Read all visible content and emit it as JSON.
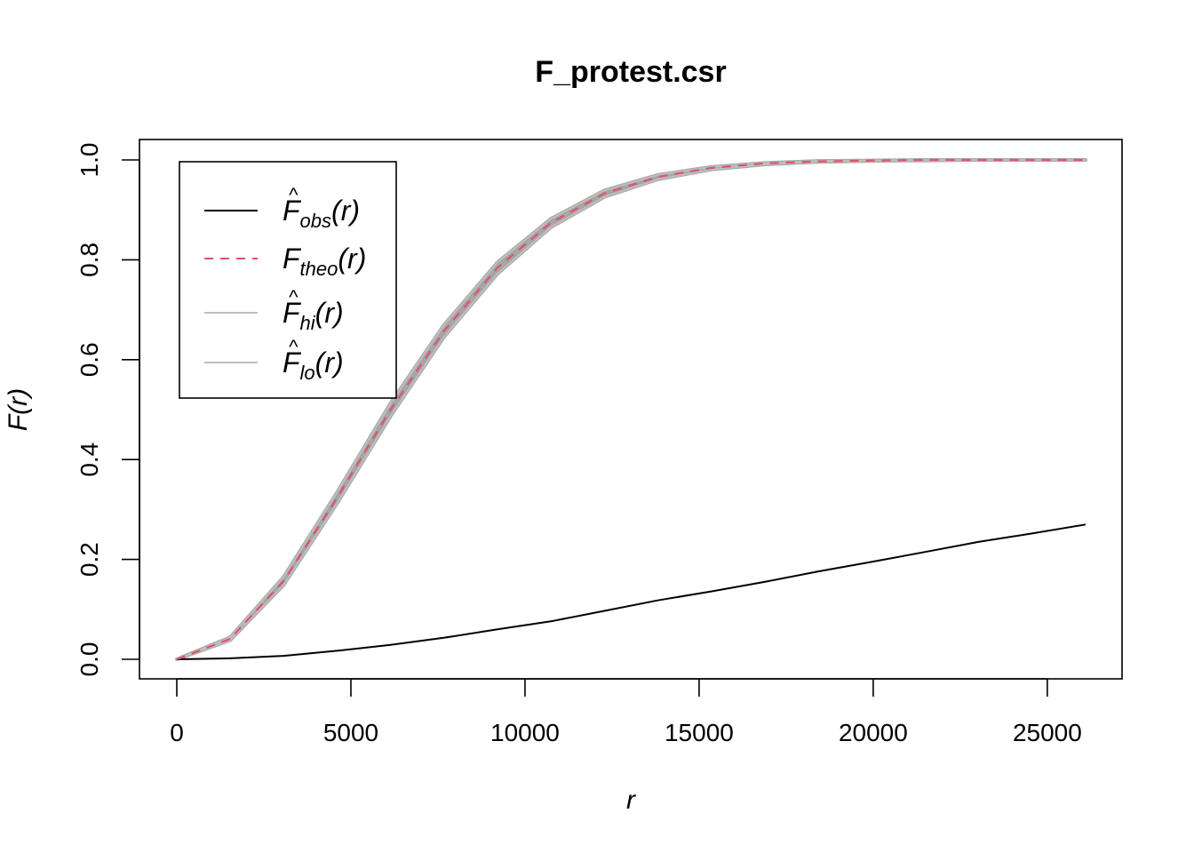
{
  "chart_data": {
    "type": "line",
    "title": "F_protest.csr",
    "xlabel": "r",
    "ylabel": "F(r)",
    "xlim": [
      0,
      26100
    ],
    "ylim": [
      0,
      1.0
    ],
    "xticks": [
      0,
      5000,
      10000,
      15000,
      20000,
      25000
    ],
    "xtick_labels": [
      "0",
      "5000",
      "10000",
      "15000",
      "20000",
      "25000"
    ],
    "yticks": [
      0.0,
      0.2,
      0.4,
      0.6,
      0.8,
      1.0
    ],
    "ytick_labels": [
      "0.0",
      "0.2",
      "0.4",
      "0.6",
      "0.8",
      "1.0"
    ],
    "x": [
      0,
      1530,
      3070,
      4600,
      6140,
      7670,
      9210,
      10740,
      12280,
      13810,
      15350,
      16880,
      18420,
      19950,
      21490,
      23020,
      24560,
      26100
    ],
    "series": [
      {
        "key": "obs",
        "legend": {
          "base": "F",
          "hat": true,
          "sub": "obs",
          "arg": "(r)"
        },
        "color": "#000000",
        "dash": "solid",
        "values": [
          0.0,
          0.002,
          0.007,
          0.017,
          0.029,
          0.043,
          0.06,
          0.076,
          0.097,
          0.118,
          0.136,
          0.155,
          0.176,
          0.195,
          0.215,
          0.235,
          0.252,
          0.27
        ]
      },
      {
        "key": "theo",
        "legend": {
          "base": "F",
          "hat": false,
          "sub": "theo",
          "arg": "(r)"
        },
        "color": "#DF536B",
        "dash": "dashed",
        "values": [
          0.0,
          0.041,
          0.157,
          0.323,
          0.5,
          0.657,
          0.784,
          0.874,
          0.933,
          0.966,
          0.984,
          0.993,
          0.997,
          0.999,
          1.0,
          1.0,
          1.0,
          1.0
        ]
      },
      {
        "key": "hi",
        "legend": {
          "base": "F",
          "hat": true,
          "sub": "hi",
          "arg": "(r)"
        },
        "color": "#BEBEBE",
        "dash": "solid",
        "values": [
          0.0,
          0.044,
          0.165,
          0.334,
          0.513,
          0.669,
          0.795,
          0.882,
          0.939,
          0.97,
          0.986,
          0.994,
          0.998,
          0.999,
          1.0,
          1.0,
          1.0,
          1.0
        ]
      },
      {
        "key": "lo",
        "legend": {
          "base": "F",
          "hat": true,
          "sub": "lo",
          "arg": "(r)"
        },
        "color": "#BEBEBE",
        "dash": "solid",
        "values": [
          0.0,
          0.038,
          0.149,
          0.312,
          0.487,
          0.645,
          0.772,
          0.865,
          0.926,
          0.961,
          0.981,
          0.991,
          0.996,
          0.998,
          0.999,
          1.0,
          1.0,
          1.0
        ]
      }
    ],
    "envelope_color": "#A6A6A6",
    "legend_position": "top-left",
    "grid": false
  }
}
